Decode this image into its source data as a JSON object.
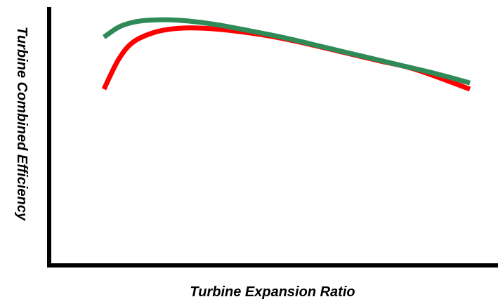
{
  "chart_data": {
    "type": "line",
    "title": "",
    "xlabel": "Turbine Expansion Ratio",
    "ylabel": "Turbine Combined Efficiency",
    "xlim": [
      0,
      100
    ],
    "ylim": [
      0,
      100
    ],
    "grid": false,
    "legend": "none",
    "axis_color": "#000000",
    "series": [
      {
        "color": "#ff0000",
        "x": [
          0,
          4,
          8,
          14,
          20,
          27,
          35,
          45,
          55,
          65,
          75,
          85,
          100
        ],
        "y": [
          68,
          80,
          87,
          91,
          92.5,
          92.6,
          91.6,
          89.5,
          86.5,
          83,
          79.5,
          76,
          68
        ]
      },
      {
        "color": "#2e8b57",
        "x": [
          0,
          4,
          8,
          12,
          17,
          23,
          30,
          40,
          50,
          60,
          70,
          80,
          90,
          100
        ],
        "y": [
          89,
          93,
          95,
          95.8,
          96,
          95.5,
          94.2,
          91.5,
          88.5,
          85,
          81.5,
          78,
          74.5,
          70.5
        ]
      }
    ]
  }
}
